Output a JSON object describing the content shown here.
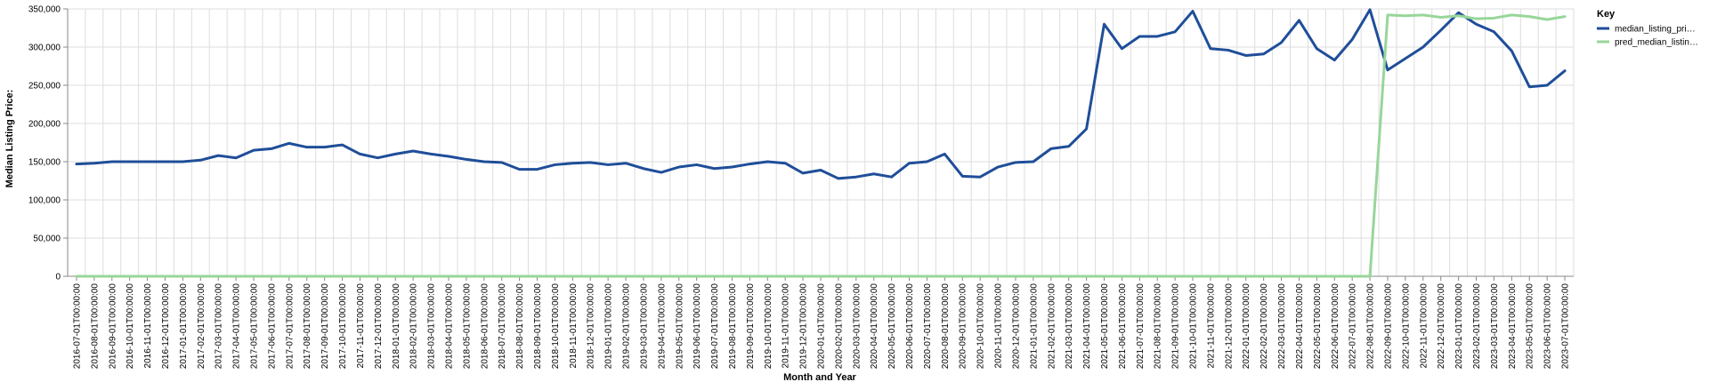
{
  "chart_data": {
    "type": "line",
    "xlabel": "Month and Year",
    "ylabel": "Median Listing Price:",
    "ylim": [
      0,
      350000
    ],
    "yticks": [
      0,
      50000,
      100000,
      150000,
      200000,
      250000,
      300000,
      350000
    ],
    "ytick_labels": [
      "0",
      "50,000",
      "100,000",
      "150,000",
      "200,000",
      "250,000",
      "300,000",
      "350,000"
    ],
    "grid": true,
    "legend": {
      "title": "Key",
      "placement": "top-right"
    },
    "x": [
      "2016-07-01T00:00:00",
      "2016-08-01T00:00:00",
      "2016-09-01T00:00:00",
      "2016-10-01T00:00:00",
      "2016-11-01T00:00:00",
      "2016-12-01T00:00:00",
      "2017-01-01T00:00:00",
      "2017-02-01T00:00:00",
      "2017-03-01T00:00:00",
      "2017-04-01T00:00:00",
      "2017-05-01T00:00:00",
      "2017-06-01T00:00:00",
      "2017-07-01T00:00:00",
      "2017-08-01T00:00:00",
      "2017-09-01T00:00:00",
      "2017-10-01T00:00:00",
      "2017-11-01T00:00:00",
      "2017-12-01T00:00:00",
      "2018-01-01T00:00:00",
      "2018-02-01T00:00:00",
      "2018-03-01T00:00:00",
      "2018-04-01T00:00:00",
      "2018-05-01T00:00:00",
      "2018-06-01T00:00:00",
      "2018-07-01T00:00:00",
      "2018-08-01T00:00:00",
      "2018-09-01T00:00:00",
      "2018-10-01T00:00:00",
      "2018-11-01T00:00:00",
      "2018-12-01T00:00:00",
      "2019-01-01T00:00:00",
      "2019-02-01T00:00:00",
      "2019-03-01T00:00:00",
      "2019-04-01T00:00:00",
      "2019-05-01T00:00:00",
      "2019-06-01T00:00:00",
      "2019-07-01T00:00:00",
      "2019-08-01T00:00:00",
      "2019-09-01T00:00:00",
      "2019-10-01T00:00:00",
      "2019-11-01T00:00:00",
      "2019-12-01T00:00:00",
      "2020-01-01T00:00:00",
      "2020-02-01T00:00:00",
      "2020-03-01T00:00:00",
      "2020-04-01T00:00:00",
      "2020-05-01T00:00:00",
      "2020-06-01T00:00:00",
      "2020-07-01T00:00:00",
      "2020-08-01T00:00:00",
      "2020-09-01T00:00:00",
      "2020-10-01T00:00:00",
      "2020-11-01T00:00:00",
      "2020-12-01T00:00:00",
      "2021-01-01T00:00:00",
      "2021-02-01T00:00:00",
      "2021-03-01T00:00:00",
      "2021-04-01T00:00:00",
      "2021-05-01T00:00:00",
      "2021-06-01T00:00:00",
      "2021-07-01T00:00:00",
      "2021-08-01T00:00:00",
      "2021-09-01T00:00:00",
      "2021-10-01T00:00:00",
      "2021-11-01T00:00:00",
      "2021-12-01T00:00:00",
      "2022-01-01T00:00:00",
      "2022-02-01T00:00:00",
      "2022-03-01T00:00:00",
      "2022-04-01T00:00:00",
      "2022-05-01T00:00:00",
      "2022-06-01T00:00:00",
      "2022-07-01T00:00:00",
      "2022-08-01T00:00:00",
      "2022-09-01T00:00:00",
      "2022-10-01T00:00:00",
      "2022-11-01T00:00:00",
      "2022-12-01T00:00:00",
      "2023-01-01T00:00:00",
      "2023-02-01T00:00:00",
      "2023-03-01T00:00:00",
      "2023-04-01T00:00:00",
      "2023-05-01T00:00:00",
      "2023-06-01T00:00:00",
      "2023-07-01T00:00:00"
    ],
    "series": [
      {
        "name": "median_listing_pri…",
        "color": "#1f4e99",
        "values": [
          147000,
          148000,
          150000,
          150000,
          150000,
          150000,
          150000,
          152000,
          158000,
          155000,
          165000,
          167000,
          174000,
          169000,
          169000,
          172000,
          160000,
          155000,
          160000,
          164000,
          160000,
          157000,
          153000,
          150000,
          149000,
          140000,
          140000,
          146000,
          148000,
          149000,
          146000,
          148000,
          141000,
          136000,
          143000,
          146000,
          141000,
          143000,
          147000,
          150000,
          148000,
          135000,
          139000,
          128000,
          130000,
          134000,
          130000,
          148000,
          150000,
          160000,
          131000,
          130000,
          143000,
          149000,
          150000,
          167000,
          170000,
          193000,
          330000,
          298000,
          314000,
          314000,
          320000,
          347000,
          298000,
          296000,
          289000,
          291000,
          306000,
          335000,
          298000,
          283000,
          310000,
          349000,
          270000,
          285000,
          300000,
          322000,
          345000,
          330000,
          320000,
          295000,
          248000,
          250000,
          269000
        ]
      },
      {
        "name": "pred_median_listin…",
        "color": "#98d69a",
        "values": [
          0,
          0,
          0,
          0,
          0,
          0,
          0,
          0,
          0,
          0,
          0,
          0,
          0,
          0,
          0,
          0,
          0,
          0,
          0,
          0,
          0,
          0,
          0,
          0,
          0,
          0,
          0,
          0,
          0,
          0,
          0,
          0,
          0,
          0,
          0,
          0,
          0,
          0,
          0,
          0,
          0,
          0,
          0,
          0,
          0,
          0,
          0,
          0,
          0,
          0,
          0,
          0,
          0,
          0,
          0,
          0,
          0,
          0,
          0,
          0,
          0,
          0,
          0,
          0,
          0,
          0,
          0,
          0,
          0,
          0,
          0,
          0,
          0,
          0,
          342000,
          341000,
          342000,
          339000,
          341000,
          337000,
          338000,
          342000,
          340000,
          336000,
          340000
        ]
      }
    ]
  }
}
